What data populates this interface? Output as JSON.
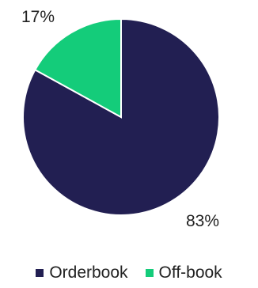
{
  "chart_data": {
    "type": "pie",
    "title": "",
    "categories": [
      "Orderbook",
      "Off-book"
    ],
    "values": [
      83,
      17
    ],
    "labels": [
      "83%",
      "17%"
    ],
    "colors": [
      "#221f52",
      "#14cc7a"
    ],
    "start_angle_deg": 0,
    "direction": "clockwise",
    "legend_position": "bottom"
  }
}
